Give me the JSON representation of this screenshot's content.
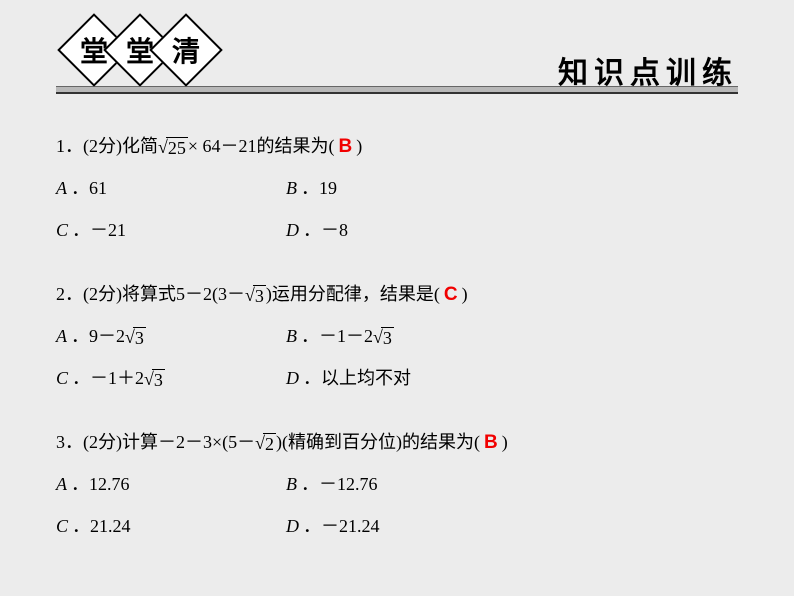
{
  "header": {
    "diamonds": [
      "堂",
      "堂",
      "清"
    ],
    "title": "知识点训练",
    "bar_color": "#b8b8b8"
  },
  "questions": [
    {
      "num": "1",
      "points": "(2分)",
      "prefix": "化简",
      "expr_sqrt": "25",
      "expr_mid": "× 64－21的结果为(",
      "answer": "B",
      "suffix": ")",
      "options": [
        {
          "label": "A",
          "text": "61"
        },
        {
          "label": "B",
          "text": "19"
        },
        {
          "label": "C",
          "text": "－21"
        },
        {
          "label": "D",
          "text": "－8"
        }
      ]
    },
    {
      "num": "2",
      "points": "(2分)",
      "prefix": "将算式5－2(3－ ",
      "expr_sqrt": "3",
      "expr_mid": ")运用分配律，结果是(",
      "answer": "C",
      "suffix": ")",
      "options": [
        {
          "label": "A",
          "pre": "9－2 ",
          "sqrt": "3"
        },
        {
          "label": "B",
          "pre": "－1－2 ",
          "sqrt": "3"
        },
        {
          "label": "C",
          "pre": "－1＋2 ",
          "sqrt": "3"
        },
        {
          "label": "D",
          "text": "以上均不对"
        }
      ]
    },
    {
      "num": "3",
      "points": "(2分)",
      "prefix": "计算－2－3×(5－ ",
      "expr_sqrt": "2",
      "expr_mid": ")(精确到百分位)的结果为(",
      "answer": "B",
      "suffix": ")",
      "options": [
        {
          "label": "A",
          "text": "12.76"
        },
        {
          "label": "B",
          "text": "－12.76"
        },
        {
          "label": "C",
          "text": "21.24"
        },
        {
          "label": "D",
          "text": "－21.24"
        }
      ]
    }
  ],
  "colors": {
    "answer": "#f10000",
    "background": "#ececec",
    "text": "#000000"
  }
}
